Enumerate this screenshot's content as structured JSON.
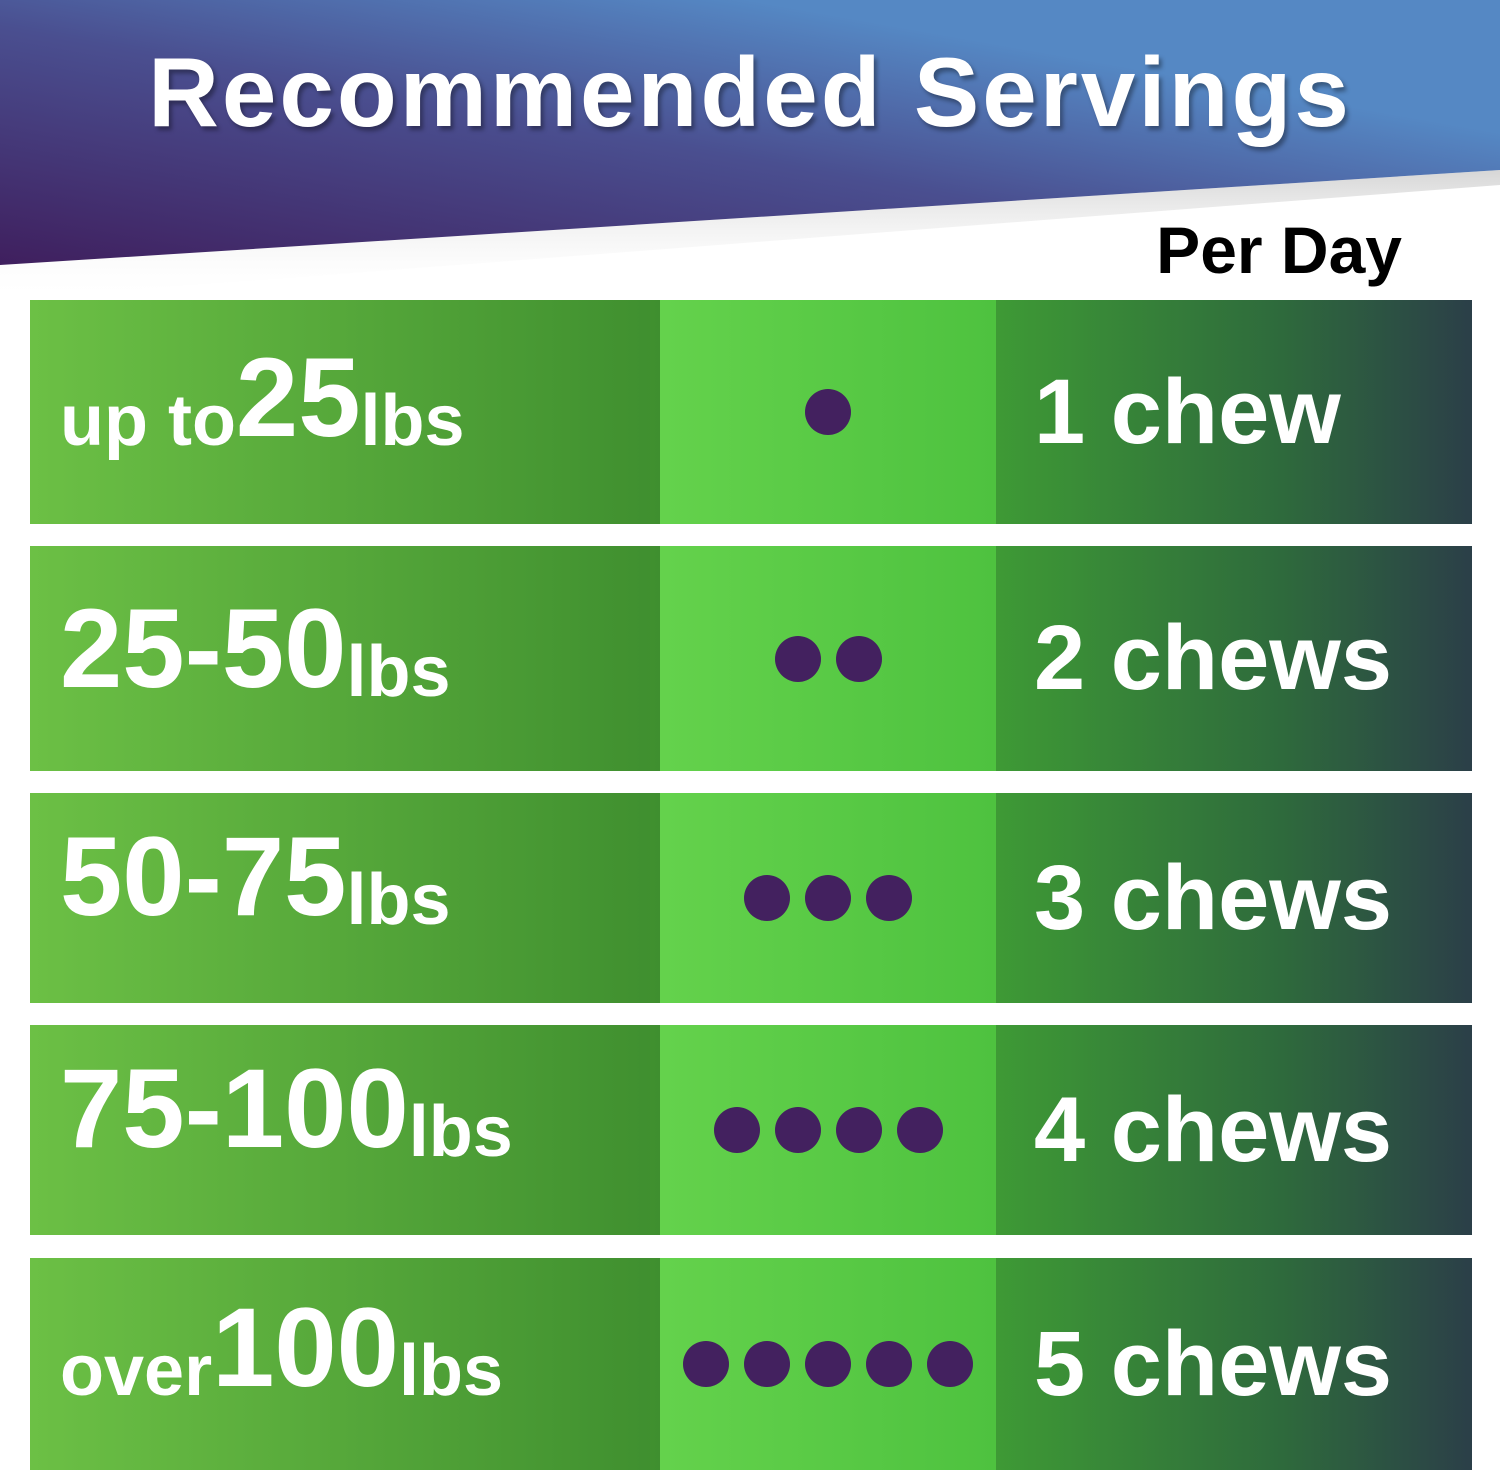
{
  "title": "Recommended Servings",
  "column_header": "Per Day",
  "colors": {
    "banner_start": "#3f1f5e",
    "banner_end": "#5588c4",
    "green": "#5ccb45",
    "dot": "#43215f"
  },
  "rows": [
    {
      "pre": "up to ",
      "num": "25",
      "unit": " lbs",
      "dots": 1,
      "amount": "1 chew"
    },
    {
      "pre": "",
      "num": "25-50",
      "unit": " lbs",
      "dots": 2,
      "amount": "2 chews"
    },
    {
      "pre": "",
      "num": "50-75",
      "unit": " lbs",
      "dots": 3,
      "amount": "3 chews"
    },
    {
      "pre": "",
      "num": "75-100",
      "unit": " lbs",
      "dots": 4,
      "amount": "4 chews"
    },
    {
      "pre": "over ",
      "num": "100",
      "unit": " lbs",
      "dots": 5,
      "amount": "5 chews"
    }
  ]
}
